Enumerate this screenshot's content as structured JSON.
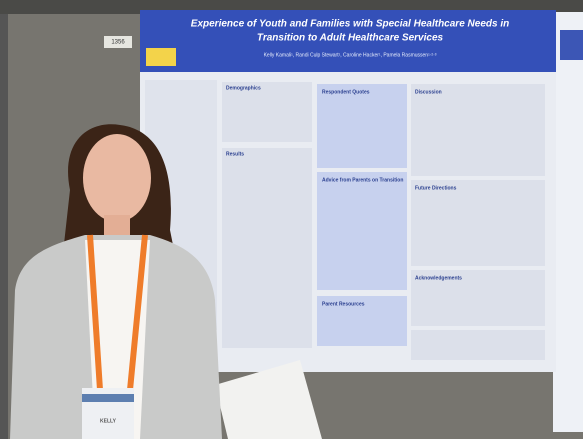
{
  "poster": {
    "title_line1": "Experience of Youth and Families with Special Healthcare Needs in",
    "title_line2": "Transition to Adult Healthcare Services",
    "authors": "Kelly Kamali¹, Randi Culp Stewart¹, Caroline Hacker¹, Pamela Rasmussen¹·²·³",
    "sections": [
      "Demographics",
      "Results",
      "Respondent Quotes",
      "Advice from Parents on Transition",
      "Parent Resources",
      "Discussion",
      "Future Directions",
      "Acknowledgements"
    ]
  },
  "sign": "1356",
  "badge": "KELLY"
}
